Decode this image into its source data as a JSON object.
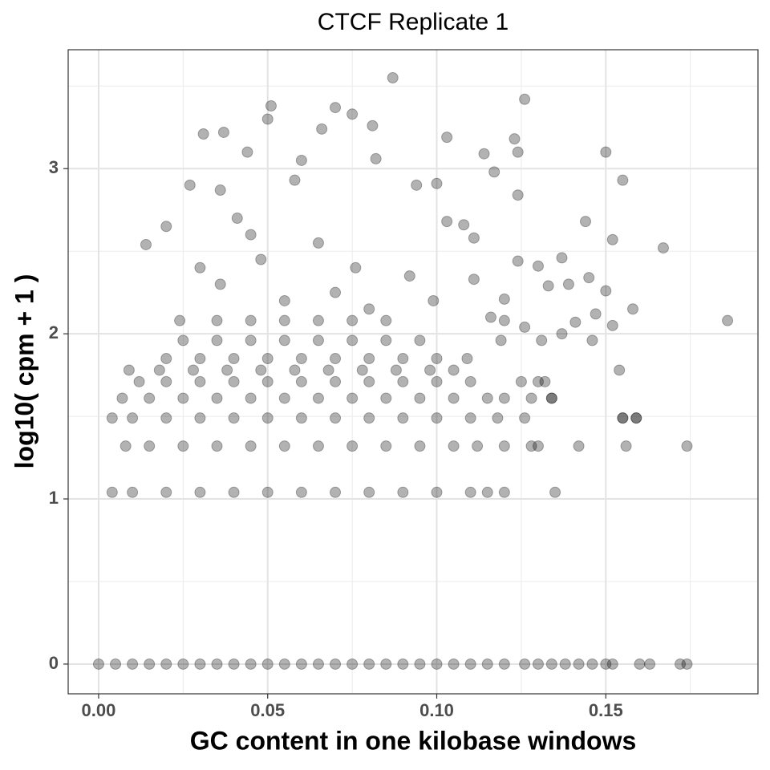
{
  "chart_data": {
    "type": "scatter",
    "title": "CTCF Replicate 1",
    "x_label": "GC content in one kilobase windows",
    "y_label": "log10( cpm + 1 )",
    "color": "#000000",
    "opacity": 0.3,
    "grid": true,
    "xlim": [
      -0.009,
      0.195
    ],
    "ylim": [
      -0.18,
      3.72
    ],
    "xticks": [
      {
        "value": 0,
        "label": "0.00"
      },
      {
        "value": 0.05,
        "label": "0.05"
      },
      {
        "value": 0.1,
        "label": "0.10"
      },
      {
        "value": 0.15,
        "label": "0.15"
      }
    ],
    "yticks": [
      0,
      1,
      2,
      3
    ],
    "x_minor_grid": [
      0.025,
      0.075,
      0.125,
      0.175
    ],
    "y_minor_grid": [
      0.5,
      1.5,
      2.5,
      3.5
    ],
    "x": [
      0,
      0.005,
      0.01,
      0.015,
      0.02,
      0.025,
      0.03,
      0.035,
      0.04,
      0.045,
      0.05,
      0.055,
      0.06,
      0.065,
      0.07,
      0.075,
      0.08,
      0.085,
      0.09,
      0.095,
      0.1,
      0.105,
      0.11,
      0.115,
      0.12,
      0.126,
      0.13,
      0.134,
      0.138,
      0.142,
      0.146,
      0.15,
      0.152,
      0.16,
      0.163,
      0.172,
      0.174,
      0.004,
      0.01,
      0.02,
      0.03,
      0.04,
      0.05,
      0.06,
      0.07,
      0.08,
      0.09,
      0.1,
      0.11,
      0.115,
      0.12,
      0.135,
      0.008,
      0.015,
      0.025,
      0.035,
      0.045,
      0.055,
      0.065,
      0.075,
      0.085,
      0.095,
      0.105,
      0.112,
      0.12,
      0.128,
      0.13,
      0.142,
      0.156,
      0.174,
      0.004,
      0.01,
      0.02,
      0.03,
      0.04,
      0.05,
      0.06,
      0.07,
      0.08,
      0.09,
      0.1,
      0.11,
      0.118,
      0.126,
      0.155,
      0.159,
      0.007,
      0.015,
      0.025,
      0.035,
      0.045,
      0.055,
      0.065,
      0.075,
      0.085,
      0.095,
      0.105,
      0.115,
      0.12,
      0.128,
      0.134,
      0.012,
      0.02,
      0.03,
      0.04,
      0.05,
      0.06,
      0.07,
      0.08,
      0.09,
      0.1,
      0.11,
      0.125,
      0.132,
      0.009,
      0.018,
      0.028,
      0.038,
      0.048,
      0.058,
      0.068,
      0.078,
      0.088,
      0.098,
      0.105,
      0.02,
      0.03,
      0.04,
      0.05,
      0.06,
      0.07,
      0.08,
      0.09,
      0.1,
      0.109,
      0.025,
      0.035,
      0.045,
      0.055,
      0.065,
      0.075,
      0.085,
      0.095,
      0.024,
      0.035,
      0.045,
      0.055,
      0.065,
      0.075,
      0.085,
      0.12,
      0.186,
      0.087,
      0.126,
      0.051,
      0.07,
      0.075,
      0.05,
      0.031,
      0.037,
      0.066,
      0.081,
      0.103,
      0.123,
      0.15,
      0.114,
      0.124,
      0.044,
      0.06,
      0.082,
      0.117,
      0.155,
      0.124,
      0.027,
      0.036,
      0.058,
      0.094,
      0.1,
      0.02,
      0.014,
      0.041,
      0.065,
      0.103,
      0.108,
      0.111,
      0.124,
      0.137,
      0.144,
      0.152,
      0.167,
      0.048,
      0.076,
      0.092,
      0.13,
      0.145,
      0.111,
      0.133,
      0.139,
      0.158,
      0.147,
      0.15,
      0.12,
      0.116,
      0.141,
      0.131,
      0.146,
      0.152,
      0.126,
      0.119,
      0.137,
      0.154,
      0.13,
      0.155,
      0.159,
      0.134,
      0.036,
      0.055,
      0.07,
      0.045,
      0.03,
      0.08,
      0.099
    ],
    "y": [
      0,
      0,
      0,
      0,
      0,
      0,
      0,
      0,
      0,
      0,
      0,
      0,
      0,
      0,
      0,
      0,
      0,
      0,
      0,
      0,
      0,
      0,
      0,
      0,
      0,
      0,
      0,
      0,
      0,
      0,
      0,
      0,
      0,
      0,
      0,
      0,
      0,
      1.04,
      1.04,
      1.04,
      1.04,
      1.04,
      1.04,
      1.04,
      1.04,
      1.04,
      1.04,
      1.04,
      1.04,
      1.04,
      1.04,
      1.04,
      1.32,
      1.32,
      1.32,
      1.32,
      1.32,
      1.32,
      1.32,
      1.32,
      1.32,
      1.32,
      1.32,
      1.32,
      1.32,
      1.32,
      1.32,
      1.32,
      1.32,
      1.32,
      1.49,
      1.49,
      1.49,
      1.49,
      1.49,
      1.49,
      1.49,
      1.49,
      1.49,
      1.49,
      1.49,
      1.49,
      1.49,
      1.49,
      1.49,
      1.49,
      1.61,
      1.61,
      1.61,
      1.61,
      1.61,
      1.61,
      1.61,
      1.61,
      1.61,
      1.61,
      1.61,
      1.61,
      1.61,
      1.61,
      1.61,
      1.71,
      1.71,
      1.71,
      1.71,
      1.71,
      1.71,
      1.71,
      1.71,
      1.71,
      1.71,
      1.71,
      1.71,
      1.71,
      1.78,
      1.78,
      1.78,
      1.78,
      1.78,
      1.78,
      1.78,
      1.78,
      1.78,
      1.78,
      1.78,
      1.85,
      1.85,
      1.85,
      1.85,
      1.85,
      1.85,
      1.85,
      1.85,
      1.85,
      1.85,
      1.96,
      1.96,
      1.96,
      1.96,
      1.96,
      1.96,
      1.96,
      1.96,
      2.08,
      2.08,
      2.08,
      2.08,
      2.08,
      2.08,
      2.08,
      2.08,
      2.08,
      3.55,
      3.42,
      3.38,
      3.37,
      3.33,
      3.3,
      3.21,
      3.22,
      3.24,
      3.26,
      3.19,
      3.18,
      3.1,
      3.09,
      3.1,
      3.1,
      3.05,
      3.06,
      2.98,
      2.93,
      2.84,
      2.9,
      2.87,
      2.93,
      2.9,
      2.91,
      2.65,
      2.54,
      2.7,
      2.55,
      2.68,
      2.66,
      2.58,
      2.44,
      2.46,
      2.68,
      2.57,
      2.52,
      2.45,
      2.4,
      2.35,
      2.41,
      2.34,
      2.33,
      2.29,
      2.3,
      2.15,
      2.12,
      2.26,
      2.21,
      2.1,
      2.07,
      1.96,
      1.96,
      2.05,
      2.04,
      1.96,
      2.0,
      1.78,
      1.71,
      1.49,
      1.49,
      1.61,
      2.3,
      2.2,
      2.25,
      2.6,
      2.4,
      2.15,
      2.2
    ]
  }
}
